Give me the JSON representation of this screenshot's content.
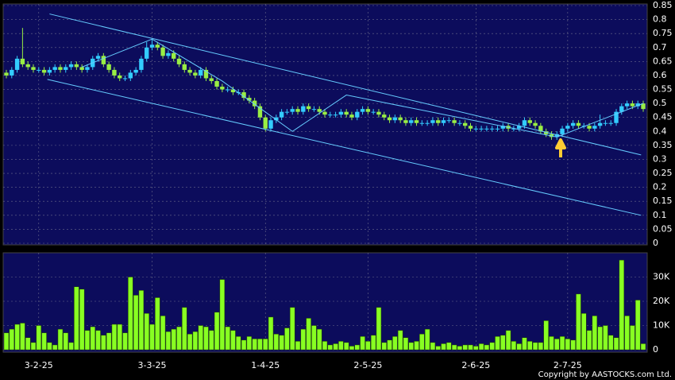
{
  "chart_data": [
    {
      "type": "candlestick",
      "open": [
        0.61,
        0.6,
        0.62,
        0.66,
        0.64,
        0.63,
        0.62,
        0.62,
        0.61,
        0.62,
        0.63,
        0.62,
        0.63,
        0.64,
        0.63,
        0.62,
        0.63,
        0.66,
        0.67,
        0.64,
        0.62,
        0.6,
        0.59,
        0.59,
        0.61,
        0.62,
        0.66,
        0.7,
        0.71,
        0.7,
        0.67,
        0.68,
        0.66,
        0.64,
        0.62,
        0.61,
        0.6,
        0.62,
        0.59,
        0.58,
        0.56,
        0.55,
        0.55,
        0.54,
        0.54,
        0.52,
        0.51,
        0.49,
        0.45,
        0.41,
        0.44,
        0.45,
        0.47,
        0.47,
        0.48,
        0.47,
        0.49,
        0.48,
        0.48,
        0.47,
        0.46,
        0.46,
        0.46,
        0.47,
        0.46,
        0.45,
        0.47,
        0.48,
        0.47,
        0.47,
        0.46,
        0.45,
        0.44,
        0.45,
        0.44,
        0.43,
        0.44,
        0.43,
        0.43,
        0.43,
        0.44,
        0.43,
        0.44,
        0.44,
        0.43,
        0.43,
        0.42,
        0.41,
        0.41,
        0.41,
        0.41,
        0.41,
        0.41,
        0.42,
        0.41,
        0.41,
        0.42,
        0.44,
        0.43,
        0.42,
        0.4,
        0.39,
        0.38,
        0.39,
        0.41,
        0.42,
        0.43,
        0.42,
        0.42,
        0.41,
        0.42,
        0.43,
        0.43,
        0.43,
        0.47,
        0.49,
        0.5,
        0.49,
        0.5
      ],
      "high": [
        0.62,
        0.63,
        0.67,
        0.77,
        0.65,
        0.64,
        0.63,
        0.63,
        0.63,
        0.64,
        0.64,
        0.64,
        0.65,
        0.65,
        0.64,
        0.64,
        0.67,
        0.68,
        0.68,
        0.65,
        0.63,
        0.61,
        0.6,
        0.62,
        0.63,
        0.67,
        0.72,
        0.73,
        0.72,
        0.71,
        0.69,
        0.69,
        0.67,
        0.65,
        0.63,
        0.62,
        0.63,
        0.63,
        0.6,
        0.59,
        0.57,
        0.56,
        0.56,
        0.55,
        0.55,
        0.53,
        0.52,
        0.5,
        0.46,
        0.45,
        0.46,
        0.48,
        0.48,
        0.49,
        0.49,
        0.5,
        0.5,
        0.49,
        0.49,
        0.48,
        0.47,
        0.47,
        0.48,
        0.48,
        0.47,
        0.48,
        0.49,
        0.49,
        0.48,
        0.48,
        0.47,
        0.46,
        0.46,
        0.46,
        0.45,
        0.45,
        0.45,
        0.44,
        0.44,
        0.45,
        0.45,
        0.45,
        0.45,
        0.45,
        0.44,
        0.44,
        0.43,
        0.42,
        0.42,
        0.42,
        0.42,
        0.42,
        0.43,
        0.43,
        0.42,
        0.43,
        0.45,
        0.45,
        0.44,
        0.43,
        0.41,
        0.4,
        0.4,
        0.42,
        0.43,
        0.44,
        0.44,
        0.43,
        0.43,
        0.43,
        0.46,
        0.44,
        0.44,
        0.48,
        0.5,
        0.51,
        0.51,
        0.51,
        0.51
      ],
      "low": [
        0.59,
        0.59,
        0.61,
        0.63,
        0.62,
        0.61,
        0.61,
        0.6,
        0.6,
        0.61,
        0.61,
        0.61,
        0.62,
        0.62,
        0.61,
        0.61,
        0.62,
        0.65,
        0.63,
        0.61,
        0.59,
        0.58,
        0.58,
        0.58,
        0.6,
        0.61,
        0.65,
        0.69,
        0.69,
        0.66,
        0.66,
        0.65,
        0.63,
        0.61,
        0.6,
        0.59,
        0.59,
        0.58,
        0.57,
        0.55,
        0.54,
        0.54,
        0.53,
        0.53,
        0.51,
        0.5,
        0.48,
        0.44,
        0.4,
        0.4,
        0.43,
        0.44,
        0.46,
        0.46,
        0.46,
        0.46,
        0.47,
        0.47,
        0.46,
        0.45,
        0.45,
        0.45,
        0.45,
        0.45,
        0.44,
        0.44,
        0.46,
        0.46,
        0.46,
        0.45,
        0.44,
        0.43,
        0.43,
        0.43,
        0.42,
        0.42,
        0.42,
        0.42,
        0.42,
        0.42,
        0.42,
        0.42,
        0.43,
        0.42,
        0.42,
        0.41,
        0.4,
        0.4,
        0.4,
        0.4,
        0.4,
        0.4,
        0.4,
        0.4,
        0.4,
        0.4,
        0.41,
        0.42,
        0.41,
        0.39,
        0.38,
        0.37,
        0.37,
        0.38,
        0.4,
        0.41,
        0.41,
        0.41,
        0.4,
        0.4,
        0.41,
        0.42,
        0.42,
        0.42,
        0.46,
        0.48,
        0.48,
        0.48,
        0.47
      ],
      "close": [
        0.6,
        0.62,
        0.66,
        0.64,
        0.63,
        0.62,
        0.62,
        0.61,
        0.62,
        0.63,
        0.62,
        0.63,
        0.64,
        0.63,
        0.62,
        0.63,
        0.66,
        0.67,
        0.64,
        0.62,
        0.6,
        0.59,
        0.59,
        0.61,
        0.62,
        0.66,
        0.7,
        0.71,
        0.7,
        0.67,
        0.68,
        0.66,
        0.64,
        0.62,
        0.61,
        0.6,
        0.62,
        0.59,
        0.58,
        0.56,
        0.55,
        0.55,
        0.54,
        0.54,
        0.52,
        0.51,
        0.49,
        0.45,
        0.41,
        0.44,
        0.45,
        0.47,
        0.47,
        0.48,
        0.47,
        0.49,
        0.48,
        0.48,
        0.47,
        0.46,
        0.46,
        0.46,
        0.47,
        0.46,
        0.45,
        0.47,
        0.48,
        0.47,
        0.47,
        0.46,
        0.45,
        0.44,
        0.45,
        0.44,
        0.43,
        0.44,
        0.43,
        0.43,
        0.43,
        0.44,
        0.43,
        0.44,
        0.44,
        0.43,
        0.43,
        0.42,
        0.41,
        0.41,
        0.41,
        0.41,
        0.41,
        0.41,
        0.42,
        0.41,
        0.41,
        0.42,
        0.44,
        0.43,
        0.42,
        0.4,
        0.39,
        0.38,
        0.39,
        0.41,
        0.42,
        0.43,
        0.42,
        0.42,
        0.41,
        0.42,
        0.43,
        0.43,
        0.43,
        0.47,
        0.49,
        0.5,
        0.49,
        0.5,
        0.48
      ],
      "up_color": "#33ccff",
      "down_color": "#99ee44",
      "ylim": [
        0,
        0.85
      ],
      "yticks": [
        0,
        0.05,
        0.1,
        0.15,
        0.2,
        0.25,
        0.3,
        0.35,
        0.4,
        0.45,
        0.5,
        0.55,
        0.6,
        0.65,
        0.7,
        0.75,
        0.8,
        0.85
      ],
      "xticks": [
        {
          "value": 6,
          "label": "3-2-25"
        },
        {
          "value": 27,
          "label": "3-3-25"
        },
        {
          "value": 48,
          "label": "1-4-25"
        },
        {
          "value": 67,
          "label": "2-5-25"
        },
        {
          "value": 87,
          "label": "2-6-25"
        },
        {
          "value": 104,
          "label": "2-7-25"
        }
      ],
      "lines": [
        {
          "x": [
            8,
            117.6
          ],
          "y": [
            0.82,
            0.316
          ]
        },
        {
          "x": [
            7.6,
            117.6
          ],
          "y": [
            0.586,
            0.1
          ]
        },
        {
          "x": [
            14,
            27,
            40,
            53,
            63,
            102,
            118
          ],
          "y": [
            0.63,
            0.73,
            0.58,
            0.4,
            0.53,
            0.38,
            0.5
          ]
        }
      ],
      "line_color": "#66ccff",
      "grid": true
    },
    {
      "type": "bar",
      "values": [
        7000,
        8500,
        10500,
        11000,
        5000,
        3000,
        10000,
        7000,
        3000,
        2000,
        8500,
        7000,
        3000,
        26000,
        25000,
        8000,
        9500,
        8000,
        6000,
        7000,
        10500,
        10500,
        7000,
        30000,
        22500,
        24500,
        15000,
        10500,
        21500,
        14000,
        7500,
        8500,
        9500,
        17500,
        6500,
        7500,
        10000,
        9500,
        8000,
        15500,
        29000,
        9500,
        8000,
        5500,
        4000,
        5500,
        4500,
        4500,
        4500,
        13500,
        6500,
        6000,
        9000,
        17500,
        3500,
        8500,
        13000,
        10000,
        8500,
        3500,
        2000,
        2500,
        3500,
        3000,
        1500,
        2000,
        5500,
        3500,
        6000,
        17500,
        3000,
        4000,
        5500,
        8000,
        5000,
        3000,
        3500,
        6500,
        8500,
        3000,
        1500,
        2500,
        3000,
        2000,
        1500,
        2000,
        2000,
        1500,
        2500,
        2000,
        3000,
        5500,
        6000,
        8000,
        3500,
        2500,
        5000,
        3500,
        3000,
        3000,
        12000,
        5500,
        4500,
        5500,
        4500,
        4000,
        23000,
        15000,
        8000,
        14000,
        9500,
        10000,
        6000,
        5000,
        37000,
        14000,
        10000,
        20500,
        2500
      ],
      "color": "#88ff22",
      "ylim": [
        0,
        40000
      ],
      "yticks": [
        {
          "value": 0,
          "label": "0"
        },
        {
          "value": 10000,
          "label": "10K"
        },
        {
          "value": 20000,
          "label": "20K"
        },
        {
          "value": 30000,
          "label": "30K"
        }
      ],
      "grid": true
    }
  ],
  "copyright": "Copyright by AASTOCKS.com Ltd."
}
